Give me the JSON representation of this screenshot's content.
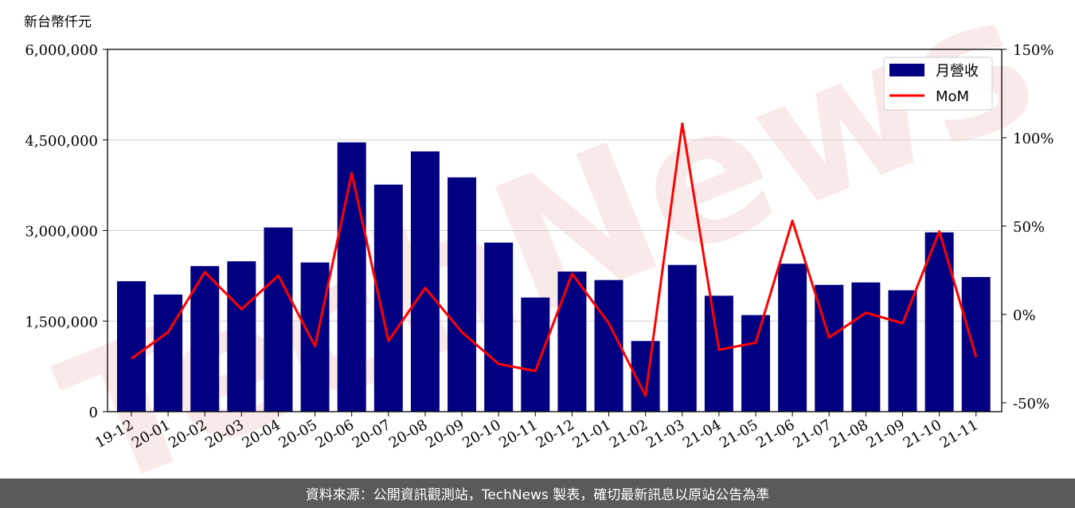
{
  "unit_label": "新台幣仟元",
  "watermark": "TechNews",
  "footer_text": "資料來源：公開資訊觀測站，TechNews 製表，確切最新訊息以原站公告為準",
  "colors": {
    "bar": "#000080",
    "line": "#ff0000",
    "grid": "#d0d0d0",
    "footer_bg": "#5a5a5a"
  },
  "chart_data": {
    "type": "bar",
    "categories": [
      "19-12",
      "20-01",
      "20-02",
      "20-03",
      "20-04",
      "20-05",
      "20-06",
      "20-07",
      "20-08",
      "20-09",
      "20-10",
      "20-11",
      "20-12",
      "21-01",
      "21-02",
      "21-03",
      "21-04",
      "21-05",
      "21-06",
      "21-07",
      "21-08",
      "21-09",
      "21-10",
      "21-11"
    ],
    "series": [
      {
        "name": "月營收",
        "type": "bar",
        "axis": "left",
        "values": [
          2160000,
          1940000,
          2410000,
          2490000,
          3050000,
          2470000,
          4460000,
          3760000,
          4310000,
          3880000,
          2800000,
          1890000,
          2320000,
          2180000,
          1170000,
          2430000,
          1920000,
          1600000,
          2450000,
          2100000,
          2140000,
          2010000,
          2970000,
          2230000
        ]
      },
      {
        "name": "MoM",
        "type": "line",
        "axis": "right",
        "values": [
          -25,
          -10,
          24,
          3,
          22,
          -18,
          80,
          -15,
          15,
          -10,
          -28,
          -32,
          23,
          -5,
          -46,
          108,
          -20,
          -16,
          53,
          -13,
          1,
          -5,
          47,
          -24
        ]
      }
    ],
    "y_left": {
      "min": 0,
      "max": 6000000,
      "ticks": [
        0,
        1500000,
        3000000,
        4500000,
        6000000
      ],
      "tick_labels": [
        "0",
        "1,500,000",
        "3,000,000",
        "4,500,000",
        "6,000,000"
      ]
    },
    "y_right": {
      "min": -55,
      "max": 150,
      "ticks": [
        -50,
        0,
        50,
        100,
        150
      ],
      "tick_labels": [
        "-50%",
        "0%",
        "50%",
        "100%",
        "150%"
      ]
    },
    "grid": true,
    "legend_position": "top-right"
  }
}
